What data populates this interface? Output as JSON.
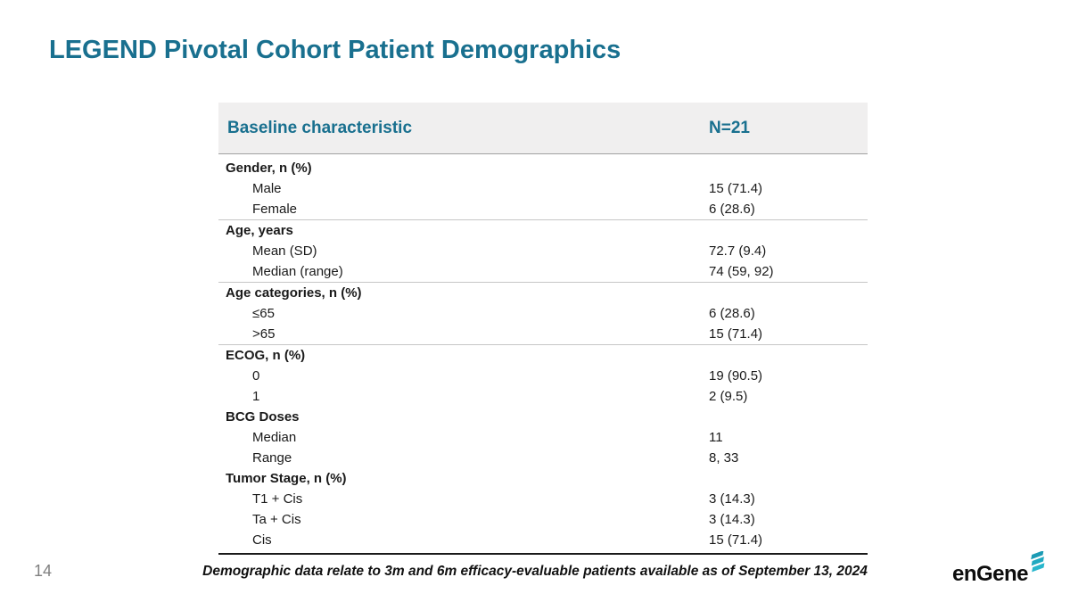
{
  "slide": {
    "title": "LEGEND Pivotal Cohort Patient Demographics",
    "page_number": "14",
    "footnote": "Demographic data relate to 3m and 6m efficacy-evaluable patients available as of September 13, 2024",
    "logo_text": "enGene"
  },
  "colors": {
    "accent_teal": "#19708F",
    "logo_teal_dark": "#157F9C",
    "logo_teal_light": "#27B6CC",
    "header_bg": "#F0EFEF",
    "divider_gray": "#C6C6C6",
    "page_number_gray": "#7F7F7F"
  },
  "table": {
    "col_headers": {
      "characteristic": "Baseline characteristic",
      "n": "N=21"
    },
    "sections": [
      {
        "header": "Gender, n (%)",
        "separator_after": true,
        "rows": [
          {
            "label": "Male",
            "value": "15 (71.4)"
          },
          {
            "label": "Female",
            "value": "6 (28.6)"
          }
        ]
      },
      {
        "header": "Age, years",
        "separator_after": true,
        "rows": [
          {
            "label": "Mean (SD)",
            "value": "72.7 (9.4)"
          },
          {
            "label": "Median (range)",
            "value": "74 (59, 92)"
          }
        ]
      },
      {
        "header": "Age categories, n (%)",
        "separator_after": true,
        "rows": [
          {
            "label": "≤65",
            "value": "6 (28.6)"
          },
          {
            "label": ">65",
            "value": "15 (71.4)"
          }
        ]
      },
      {
        "header": "ECOG, n (%)",
        "separator_after": false,
        "rows": [
          {
            "label": "0",
            "value": "19 (90.5)"
          },
          {
            "label": "1",
            "value": "2 (9.5)"
          }
        ]
      },
      {
        "header": "BCG Doses",
        "separator_after": false,
        "rows": [
          {
            "label": "Median",
            "value": "11"
          },
          {
            "label": "Range",
            "value": "8, 33"
          }
        ]
      },
      {
        "header": "Tumor Stage, n (%)",
        "separator_after": false,
        "rows": [
          {
            "label": "T1 + Cis",
            "value": "3 (14.3)"
          },
          {
            "label": "Ta + Cis",
            "value": "3 (14.3)"
          },
          {
            "label": "Cis",
            "value": "15 (71.4)"
          }
        ]
      }
    ]
  }
}
